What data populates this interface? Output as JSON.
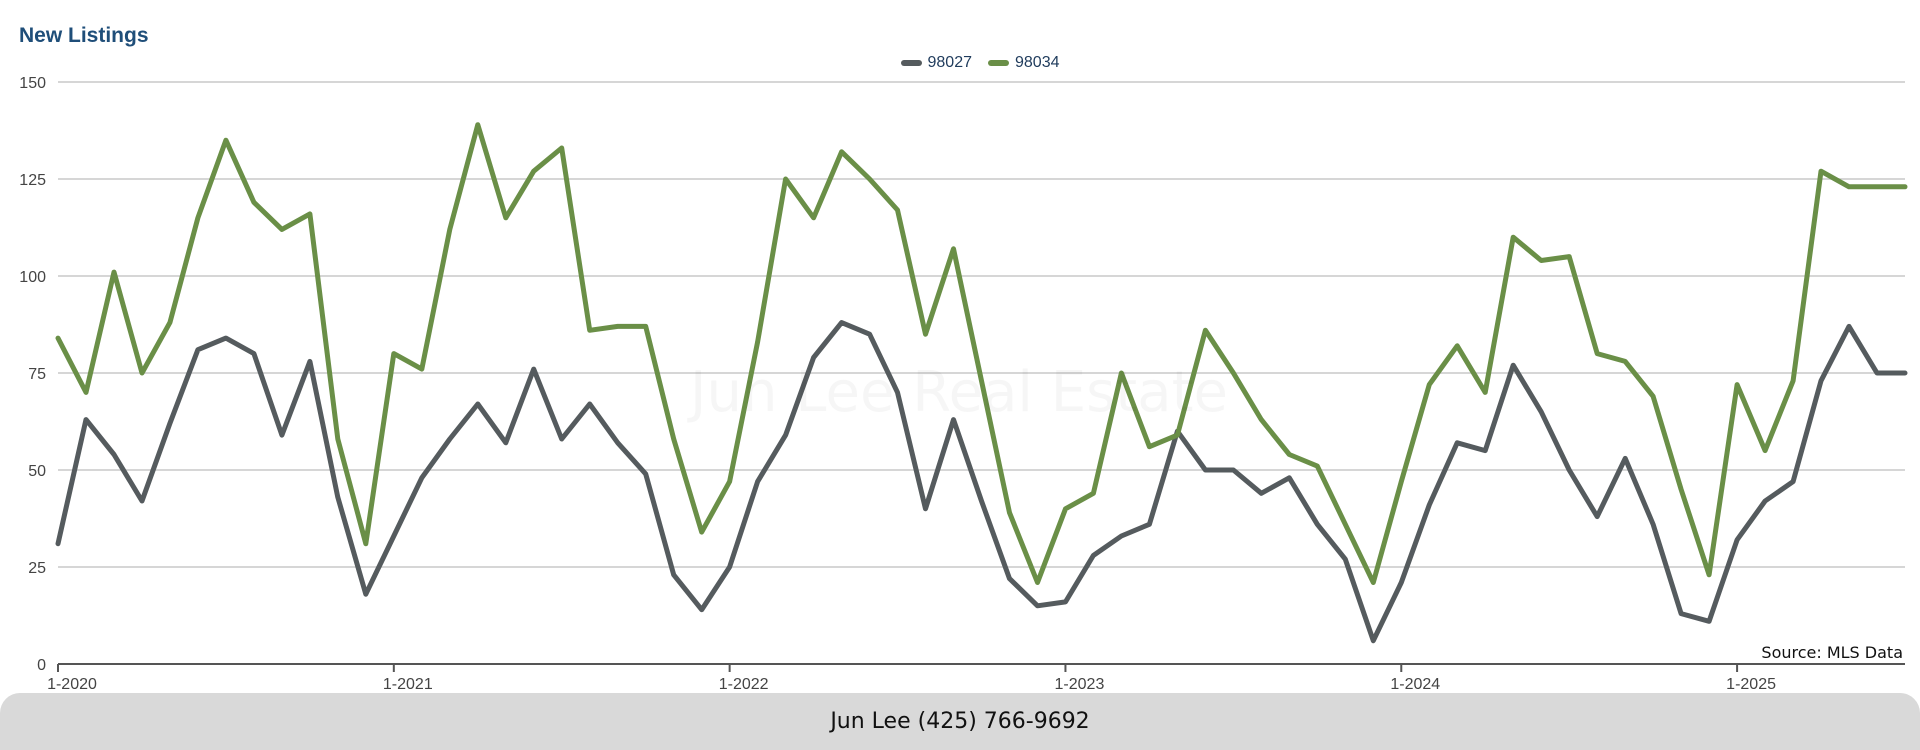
{
  "footer": {
    "contact": "Jun Lee (425) 766-9692"
  },
  "watermark": "Jun Lee Real Estate",
  "chart_data": {
    "type": "line",
    "title": "New Listings",
    "source_note": "Source: MLS Data",
    "ylim": [
      0,
      150
    ],
    "yticks": [
      0,
      25,
      50,
      75,
      100,
      125,
      150
    ],
    "xtick_labels": [
      "1-2020",
      "1-2021",
      "1-2022",
      "1-2023",
      "1-2024",
      "1-2025"
    ],
    "xtick_index": [
      0,
      12,
      24,
      36,
      48,
      60
    ],
    "grid": true,
    "legend_position": "top-center",
    "x_start": "1-2020",
    "x_count": 67,
    "series": [
      {
        "name": "98027",
        "color": "#555b5e",
        "values": [
          31,
          63,
          54,
          42,
          62,
          81,
          84,
          80,
          59,
          78,
          43,
          18,
          33,
          48,
          58,
          67,
          57,
          76,
          58,
          67,
          57,
          49,
          23,
          14,
          25,
          47,
          59,
          79,
          88,
          85,
          70,
          40,
          63,
          42,
          22,
          15,
          16,
          28,
          33,
          36,
          60,
          50,
          50,
          44,
          48,
          36,
          27,
          6,
          21,
          41,
          57,
          55,
          77,
          65,
          50,
          38,
          53,
          36,
          13,
          11,
          32,
          42,
          47,
          73,
          87,
          75,
          75
        ]
      },
      {
        "name": "98034",
        "color": "#6a8f47",
        "values": [
          84,
          70,
          101,
          75,
          88,
          115,
          135,
          119,
          112,
          116,
          58,
          31,
          80,
          76,
          112,
          139,
          115,
          127,
          133,
          86,
          87,
          87,
          58,
          34,
          47,
          83,
          125,
          115,
          132,
          125,
          117,
          85,
          107,
          73,
          39,
          21,
          40,
          44,
          75,
          56,
          59,
          86,
          75,
          63,
          54,
          51,
          36,
          21,
          47,
          72,
          82,
          70,
          110,
          104,
          105,
          80,
          78,
          69,
          45,
          23,
          72,
          55,
          73,
          127,
          123,
          123,
          123
        ]
      }
    ]
  }
}
